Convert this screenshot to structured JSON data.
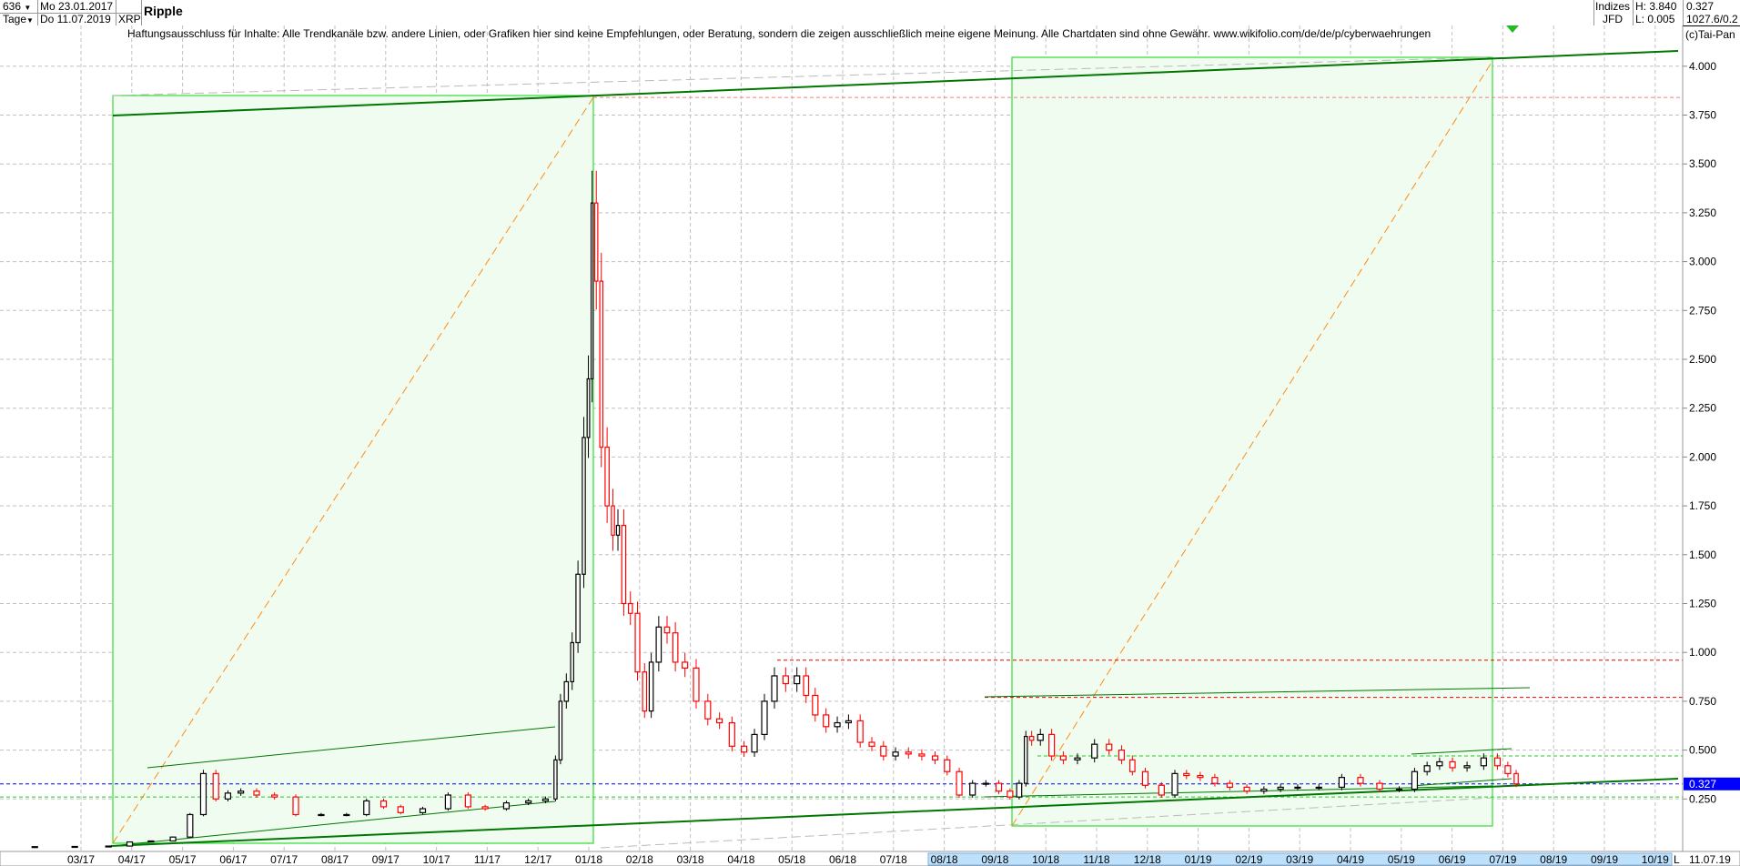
{
  "header": {
    "bar_count": "636",
    "period": "Tage",
    "date_from": "Mo 23.01.2017",
    "date_to": "Do 11.07.2019",
    "symbol": "XRP",
    "title": "Ripple",
    "exchange_group": "Indizes",
    "exchange": "JFD",
    "high": "H: 3.840",
    "low": "L: 0.005",
    "last": "0.327",
    "extra": "1027.6/0.2"
  },
  "disclaimer": "Haftungsausschluss für Inhalte: Alle Trendkanäle bzw. andere Linien, oder Grafiken hier sind keine Empfehlungen, oder Beratung, sondern die zeigen ausschließlich meine eigene Meinung. Alle Chartdaten sind ohne Gewähr.  www.wikifolio.com/de/de/p/cyberwaehrungen",
  "copyright": "(c)Tai-Pan",
  "footer": {
    "scale_mode": "L",
    "last_date": "11.07.19"
  },
  "colors": {
    "up": "#000000",
    "down": "#ff0000",
    "box_fill": "#effcef",
    "box_border": "#33dd33",
    "trend": "#007700",
    "last_price": "#0000ff"
  },
  "chart_data": {
    "type": "candlestick",
    "title": "Ripple",
    "ylim": [
      0,
      4.1
    ],
    "grid": true,
    "y_ticks": [
      "0.250",
      "0.500",
      "0.750",
      "1.000",
      "1.250",
      "1.500",
      "1.750",
      "2.000",
      "2.250",
      "2.500",
      "2.750",
      "3.000",
      "3.250",
      "3.500",
      "3.750",
      "4.000"
    ],
    "x_ticks": [
      "03/17",
      "04/17",
      "05/17",
      "06/17",
      "07/17",
      "08/17",
      "09/17",
      "10/17",
      "11/17",
      "12/17",
      "01/18",
      "02/18",
      "03/18",
      "04/18",
      "05/18",
      "06/18",
      "07/18",
      "08/18",
      "09/18",
      "10/18",
      "11/18",
      "12/18",
      "01/19",
      "02/19",
      "03/19",
      "04/19",
      "05/19",
      "06/19",
      "07/19",
      "08/19",
      "09/19",
      "10/19"
    ],
    "last_price_label": "0.327",
    "last_price": 0.327,
    "levels": {
      "high": 3.84,
      "red_1": 0.96,
      "red_2": 0.77,
      "green_1": 0.47,
      "green_2": 0.26
    },
    "closes": [
      [
        "2017-01-23",
        0.006
      ],
      [
        "2017-02-15",
        0.006
      ],
      [
        "2017-03-10",
        0.007
      ],
      [
        "2017-03-25",
        0.009
      ],
      [
        "2017-04-05",
        0.03
      ],
      [
        "2017-04-20",
        0.035
      ],
      [
        "2017-05-01",
        0.055
      ],
      [
        "2017-05-10",
        0.17
      ],
      [
        "2017-05-17",
        0.38
      ],
      [
        "2017-05-25",
        0.25
      ],
      [
        "2017-06-01",
        0.28
      ],
      [
        "2017-06-10",
        0.29
      ],
      [
        "2017-06-20",
        0.27
      ],
      [
        "2017-07-01",
        0.26
      ],
      [
        "2017-07-15",
        0.17
      ],
      [
        "2017-08-01",
        0.17
      ],
      [
        "2017-08-15",
        0.17
      ],
      [
        "2017-08-25",
        0.24
      ],
      [
        "2017-09-05",
        0.21
      ],
      [
        "2017-09-15",
        0.18
      ],
      [
        "2017-10-01",
        0.2
      ],
      [
        "2017-10-15",
        0.27
      ],
      [
        "2017-10-25",
        0.21
      ],
      [
        "2017-11-05",
        0.2
      ],
      [
        "2017-11-20",
        0.23
      ],
      [
        "2017-12-01",
        0.24
      ],
      [
        "2017-12-10",
        0.25
      ],
      [
        "2017-12-13",
        0.45
      ],
      [
        "2017-12-16",
        0.75
      ],
      [
        "2017-12-20",
        0.85
      ],
      [
        "2017-12-23",
        1.05
      ],
      [
        "2017-12-27",
        1.4
      ],
      [
        "2017-12-30",
        2.1
      ],
      [
        "2018-01-02",
        2.4
      ],
      [
        "2018-01-04",
        3.3
      ],
      [
        "2018-01-07",
        2.9
      ],
      [
        "2018-01-10",
        2.05
      ],
      [
        "2018-01-14",
        1.75
      ],
      [
        "2018-01-17",
        1.6
      ],
      [
        "2018-01-20",
        1.65
      ],
      [
        "2018-01-24",
        1.25
      ],
      [
        "2018-01-28",
        1.2
      ],
      [
        "2018-02-02",
        0.9
      ],
      [
        "2018-02-06",
        0.7
      ],
      [
        "2018-02-10",
        0.95
      ],
      [
        "2018-02-15",
        1.13
      ],
      [
        "2018-02-20",
        1.1
      ],
      [
        "2018-02-25",
        0.95
      ],
      [
        "2018-03-01",
        0.92
      ],
      [
        "2018-03-08",
        0.75
      ],
      [
        "2018-03-15",
        0.66
      ],
      [
        "2018-03-22",
        0.64
      ],
      [
        "2018-03-30",
        0.52
      ],
      [
        "2018-04-06",
        0.49
      ],
      [
        "2018-04-12",
        0.58
      ],
      [
        "2018-04-18",
        0.75
      ],
      [
        "2018-04-24",
        0.88
      ],
      [
        "2018-05-01",
        0.84
      ],
      [
        "2018-05-07",
        0.88
      ],
      [
        "2018-05-12",
        0.78
      ],
      [
        "2018-05-18",
        0.68
      ],
      [
        "2018-05-25",
        0.62
      ],
      [
        "2018-06-01",
        0.64
      ],
      [
        "2018-06-08",
        0.65
      ],
      [
        "2018-06-15",
        0.54
      ],
      [
        "2018-06-22",
        0.52
      ],
      [
        "2018-06-29",
        0.47
      ],
      [
        "2018-07-06",
        0.49
      ],
      [
        "2018-07-14",
        0.48
      ],
      [
        "2018-07-22",
        0.47
      ],
      [
        "2018-07-30",
        0.45
      ],
      [
        "2018-08-06",
        0.39
      ],
      [
        "2018-08-14",
        0.27
      ],
      [
        "2018-08-22",
        0.33
      ],
      [
        "2018-08-30",
        0.33
      ],
      [
        "2018-09-07",
        0.29
      ],
      [
        "2018-09-13",
        0.26
      ],
      [
        "2018-09-18",
        0.33
      ],
      [
        "2018-09-21",
        0.57
      ],
      [
        "2018-09-25",
        0.55
      ],
      [
        "2018-10-01",
        0.58
      ],
      [
        "2018-10-08",
        0.47
      ],
      [
        "2018-10-15",
        0.45
      ],
      [
        "2018-10-25",
        0.46
      ],
      [
        "2018-11-05",
        0.53
      ],
      [
        "2018-11-12",
        0.5
      ],
      [
        "2018-11-20",
        0.45
      ],
      [
        "2018-11-25",
        0.39
      ],
      [
        "2018-12-05",
        0.32
      ],
      [
        "2018-12-14",
        0.27
      ],
      [
        "2018-12-21",
        0.38
      ],
      [
        "2018-12-28",
        0.37
      ],
      [
        "2019-01-07",
        0.36
      ],
      [
        "2019-01-15",
        0.33
      ],
      [
        "2019-01-25",
        0.31
      ],
      [
        "2019-02-05",
        0.29
      ],
      [
        "2019-02-15",
        0.3
      ],
      [
        "2019-02-25",
        0.31
      ],
      [
        "2019-03-05",
        0.31
      ],
      [
        "2019-03-20",
        0.31
      ],
      [
        "2019-04-02",
        0.36
      ],
      [
        "2019-04-12",
        0.33
      ],
      [
        "2019-04-25",
        0.3
      ],
      [
        "2019-05-05",
        0.3
      ],
      [
        "2019-05-13",
        0.39
      ],
      [
        "2019-05-20",
        0.42
      ],
      [
        "2019-05-28",
        0.44
      ],
      [
        "2019-06-05",
        0.41
      ],
      [
        "2019-06-15",
        0.42
      ],
      [
        "2019-06-25",
        0.46
      ],
      [
        "2019-07-01",
        0.42
      ],
      [
        "2019-07-07",
        0.38
      ],
      [
        "2019-07-11",
        0.327
      ]
    ]
  }
}
